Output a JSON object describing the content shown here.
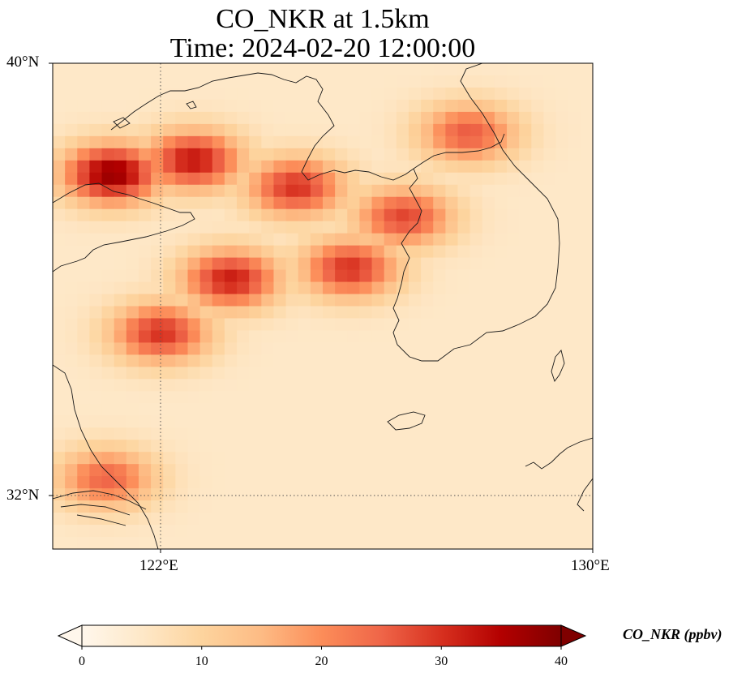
{
  "title": {
    "line1": "CO_NKR at 1.5km",
    "line2": "Time: 2024-02-20 12:00:00"
  },
  "map": {
    "extent": {
      "lon_min": 120.0,
      "lon_max": 130.0,
      "lat_min": 31.0,
      "lat_max": 40.0
    },
    "gridlines": {
      "lon": [
        122
      ],
      "lat": [
        32
      ],
      "style": "dotted"
    },
    "lat_ticks": [
      "40°N",
      "32°N"
    ],
    "lon_ticks": [
      "122°E",
      "130°E"
    ]
  },
  "field": {
    "variable": "CO_NKR",
    "units": "ppbv",
    "colormap": "OrRd",
    "background_value": 5,
    "plumes": [
      {
        "lon": 121.1,
        "lat": 37.95,
        "peak": 38
      },
      {
        "lon": 122.6,
        "lat": 38.2,
        "peak": 33
      },
      {
        "lon": 124.5,
        "lat": 37.7,
        "peak": 30
      },
      {
        "lon": 126.5,
        "lat": 37.15,
        "peak": 28
      },
      {
        "lon": 125.5,
        "lat": 36.2,
        "peak": 30
      },
      {
        "lon": 123.3,
        "lat": 36.0,
        "peak": 32
      },
      {
        "lon": 122.0,
        "lat": 35.0,
        "peak": 30
      },
      {
        "lon": 121.0,
        "lat": 32.3,
        "peak": 25
      },
      {
        "lon": 127.7,
        "lat": 38.7,
        "peak": 26
      }
    ]
  },
  "colorbar": {
    "min": 0,
    "max": 40,
    "ticks": [
      "0",
      "10",
      "20",
      "30",
      "40"
    ],
    "label": "CO_NKR (ppbv)",
    "extend": "both",
    "colors": [
      "#fff7ec",
      "#fee8c8",
      "#fdd49e",
      "#fdbb84",
      "#fc8d59",
      "#ef6548",
      "#d7301f",
      "#b30000",
      "#7f0000"
    ]
  }
}
